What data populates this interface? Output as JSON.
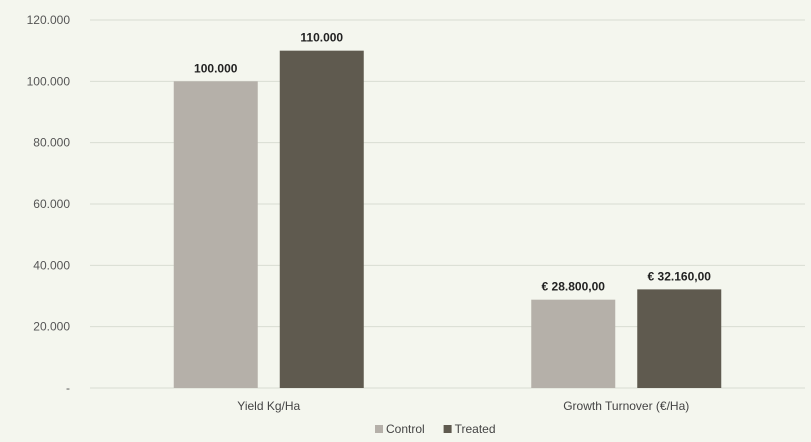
{
  "chart_data": {
    "type": "bar",
    "title": "",
    "categories": [
      "Yield Kg/Ha",
      "Growth Turnover (€/Ha)"
    ],
    "series": [
      {
        "name": "Control",
        "values": [
          100000,
          28800
        ],
        "labels": [
          "100.000",
          "€ 28.800,00"
        ],
        "color": "#b5b0a9"
      },
      {
        "name": "Treated",
        "values": [
          110000,
          32160
        ],
        "labels": [
          "110.000",
          "€ 32.160,00"
        ],
        "color": "#5f5a4f"
      }
    ],
    "yticks": [
      {
        "value": 0,
        "label": "-"
      },
      {
        "value": 20000,
        "label": "20.000"
      },
      {
        "value": 40000,
        "label": "40.000"
      },
      {
        "value": 60000,
        "label": "60.000"
      },
      {
        "value": 80000,
        "label": "80.000"
      },
      {
        "value": 100000,
        "label": "100.000"
      },
      {
        "value": 120000,
        "label": "120.000"
      }
    ],
    "ylim": [
      0,
      120000
    ],
    "grid": true,
    "legend_position": "bottom"
  }
}
